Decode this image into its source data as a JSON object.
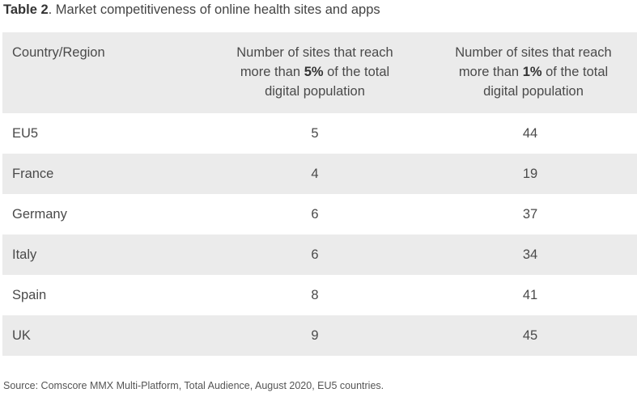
{
  "caption": {
    "label": "Table 2",
    "text": ". Market competitiveness of online health sites and apps"
  },
  "table": {
    "headers": {
      "country": "Country/Region",
      "five_pct": {
        "before": "Number of sites that reach more than ",
        "pct": "5%",
        "after": " of the total digital population"
      },
      "one_pct": {
        "before": "Number of sites that reach more than ",
        "pct": "1%",
        "after": " of the total digital population"
      }
    },
    "rows": [
      {
        "country": "EU5",
        "five_pct": "5",
        "one_pct": "44"
      },
      {
        "country": "France",
        "five_pct": "4",
        "one_pct": "19"
      },
      {
        "country": "Germany",
        "five_pct": "6",
        "one_pct": "37"
      },
      {
        "country": "Italy",
        "five_pct": "6",
        "one_pct": "34"
      },
      {
        "country": "Spain",
        "five_pct": "8",
        "one_pct": "41"
      },
      {
        "country": "UK",
        "five_pct": "9",
        "one_pct": "45"
      }
    ]
  },
  "source": "Source: Comscore MMX Multi-Platform, Total Audience, August 2020, EU5 countries.",
  "colors": {
    "row_shade": "#ebebeb",
    "text": "#4a4a4a"
  }
}
